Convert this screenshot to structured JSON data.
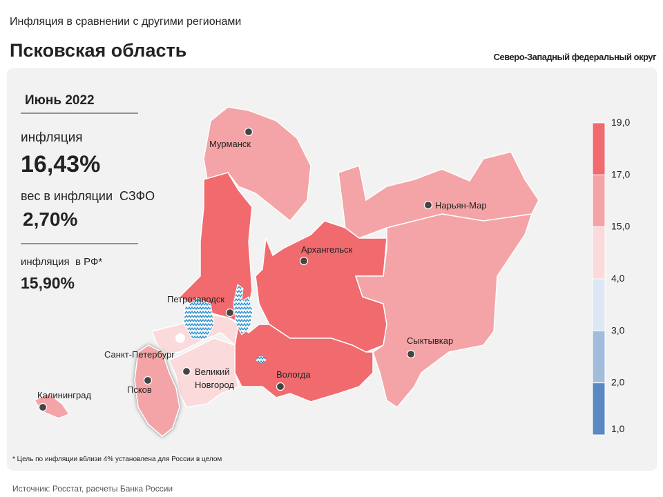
{
  "header": {
    "subtitle": "Инфляция в сравнении с другими регионами",
    "title": "Псковская область",
    "district": "Северо-Западный федеральный округ"
  },
  "panel": {
    "period": "Июнь 2022",
    "inflation_label": "инфляция",
    "inflation_value": "16,43%",
    "weight_label": "вес в инфляции  СЗФО",
    "weight_value": "2,70%",
    "rf_label": "инфляция  в РФ*",
    "rf_value": "15,90%"
  },
  "legend": {
    "ticks": [
      "19,0",
      "17,0",
      "15,0",
      "4,0",
      "3,0",
      "2,0",
      "1,0"
    ],
    "colors": [
      "#f06a6e",
      "#f4a4a6",
      "#fadadb",
      "#dde6f5",
      "#a4bcdc",
      "#5b87c2"
    ]
  },
  "cities": [
    "Мурманск",
    "Нарьян-Мар",
    "Архангельск",
    "Петрозаводск",
    "Сыктывкар",
    "Санкт-Петербург",
    "Великий",
    "Новгород",
    "Вологда",
    "Псков",
    "Калининград"
  ],
  "footnote": "* Цель по инфляции вблизи 4% установлена для России в целом",
  "source": "Источник: Росстат, расчеты Банка России"
}
